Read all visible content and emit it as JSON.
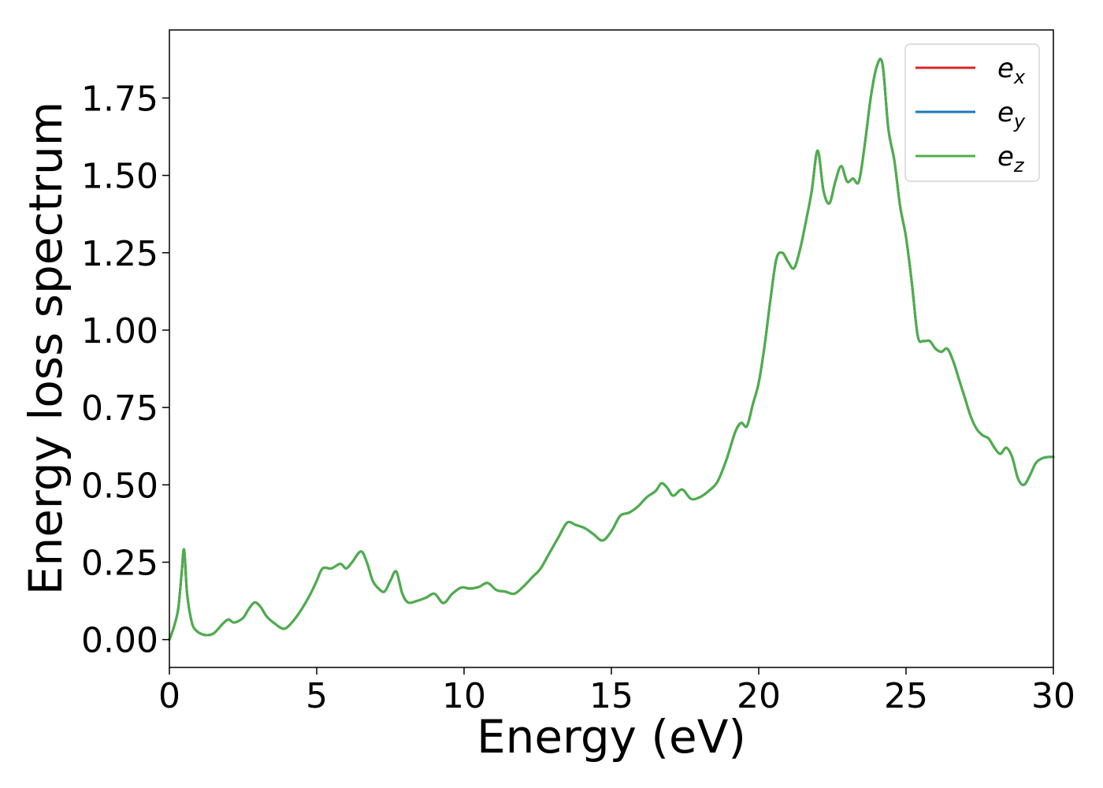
{
  "chart_data": {
    "type": "line",
    "title": "",
    "xlabel": "Energy (eV)",
    "ylabel": "Energy loss spectrum",
    "xlim": [
      0,
      30
    ],
    "ylim": [
      -0.09,
      1.97
    ],
    "xticks": [
      0,
      5,
      10,
      15,
      20,
      25,
      30
    ],
    "xtick_labels": [
      "0",
      "5",
      "10",
      "15",
      "20",
      "25",
      "30"
    ],
    "yticks": [
      0.0,
      0.25,
      0.5,
      0.75,
      1.0,
      1.25,
      1.5,
      1.75
    ],
    "ytick_labels": [
      "0.00",
      "0.25",
      "0.50",
      "0.75",
      "1.00",
      "1.25",
      "1.50",
      "1.75"
    ],
    "grid": false,
    "legend": {
      "position": "top-right",
      "entries": [
        {
          "base": "e",
          "sub": "x",
          "color": "#d62728"
        },
        {
          "base": "e",
          "sub": "y",
          "color": "#1f77b4"
        },
        {
          "base": "e",
          "sub": "z",
          "color": "#4daf4a"
        }
      ]
    },
    "series": [
      {
        "color": "#d62728",
        "x": [
          0.0,
          0.15,
          0.3,
          0.42,
          0.5,
          0.6,
          0.75,
          0.9,
          1.2,
          1.5,
          1.8,
          2.0,
          2.2,
          2.5,
          2.7,
          2.9,
          3.1,
          3.3,
          3.6,
          3.9,
          4.2,
          4.5,
          4.8,
          5.0,
          5.2,
          5.5,
          5.8,
          6.0,
          6.2,
          6.5,
          6.7,
          6.9,
          7.1,
          7.3,
          7.5,
          7.7,
          7.9,
          8.1,
          8.4,
          8.7,
          9.0,
          9.3,
          9.6,
          9.9,
          10.2,
          10.5,
          10.8,
          11.1,
          11.4,
          11.7,
          12.0,
          12.3,
          12.6,
          12.9,
          13.2,
          13.5,
          13.8,
          14.1,
          14.4,
          14.7,
          15.0,
          15.3,
          15.6,
          15.9,
          16.2,
          16.5,
          16.7,
          16.9,
          17.1,
          17.4,
          17.7,
          18.0,
          18.3,
          18.6,
          18.9,
          19.2,
          19.4,
          19.6,
          19.8,
          20.0,
          20.2,
          20.4,
          20.6,
          20.8,
          21.0,
          21.2,
          21.4,
          21.6,
          21.8,
          22.0,
          22.2,
          22.4,
          22.6,
          22.8,
          23.0,
          23.2,
          23.4,
          23.6,
          23.8,
          24.0,
          24.2,
          24.4,
          24.6,
          24.8,
          25.0,
          25.2,
          25.4,
          25.6,
          25.8,
          26.0,
          26.2,
          26.4,
          26.6,
          26.8,
          27.0,
          27.2,
          27.4,
          27.6,
          27.8,
          28.0,
          28.2,
          28.4,
          28.6,
          28.8,
          29.0,
          29.2,
          29.4,
          29.6,
          29.8,
          30.0
        ],
        "y": [
          0.0,
          0.04,
          0.1,
          0.22,
          0.29,
          0.15,
          0.06,
          0.03,
          0.015,
          0.02,
          0.05,
          0.065,
          0.055,
          0.07,
          0.1,
          0.12,
          0.105,
          0.075,
          0.05,
          0.035,
          0.06,
          0.1,
          0.15,
          0.19,
          0.23,
          0.23,
          0.245,
          0.23,
          0.25,
          0.285,
          0.25,
          0.19,
          0.165,
          0.155,
          0.19,
          0.22,
          0.15,
          0.12,
          0.125,
          0.135,
          0.148,
          0.118,
          0.148,
          0.168,
          0.165,
          0.17,
          0.183,
          0.16,
          0.155,
          0.148,
          0.17,
          0.2,
          0.23,
          0.28,
          0.33,
          0.378,
          0.37,
          0.36,
          0.34,
          0.32,
          0.35,
          0.4,
          0.41,
          0.43,
          0.46,
          0.48,
          0.505,
          0.49,
          0.465,
          0.485,
          0.455,
          0.46,
          0.48,
          0.51,
          0.58,
          0.67,
          0.7,
          0.69,
          0.76,
          0.83,
          0.95,
          1.1,
          1.23,
          1.25,
          1.22,
          1.2,
          1.26,
          1.35,
          1.45,
          1.58,
          1.45,
          1.41,
          1.48,
          1.53,
          1.48,
          1.49,
          1.48,
          1.6,
          1.75,
          1.85,
          1.86,
          1.65,
          1.55,
          1.4,
          1.3,
          1.15,
          0.98,
          0.965,
          0.965,
          0.94,
          0.93,
          0.94,
          0.9,
          0.84,
          0.78,
          0.72,
          0.68,
          0.66,
          0.65,
          0.62,
          0.6,
          0.62,
          0.59,
          0.52,
          0.5,
          0.53,
          0.57,
          0.585,
          0.59,
          0.59
        ]
      },
      {
        "color": "#1f77b4",
        "x": [
          0.0,
          0.15,
          0.3,
          0.42,
          0.5,
          0.6,
          0.75,
          0.9,
          1.2,
          1.5,
          1.8,
          2.0,
          2.2,
          2.5,
          2.7,
          2.9,
          3.1,
          3.3,
          3.6,
          3.9,
          4.2,
          4.5,
          4.8,
          5.0,
          5.2,
          5.5,
          5.8,
          6.0,
          6.2,
          6.5,
          6.7,
          6.9,
          7.1,
          7.3,
          7.5,
          7.7,
          7.9,
          8.1,
          8.4,
          8.7,
          9.0,
          9.3,
          9.6,
          9.9,
          10.2,
          10.5,
          10.8,
          11.1,
          11.4,
          11.7,
          12.0,
          12.3,
          12.6,
          12.9,
          13.2,
          13.5,
          13.8,
          14.1,
          14.4,
          14.7,
          15.0,
          15.3,
          15.6,
          15.9,
          16.2,
          16.5,
          16.7,
          16.9,
          17.1,
          17.4,
          17.7,
          18.0,
          18.3,
          18.6,
          18.9,
          19.2,
          19.4,
          19.6,
          19.8,
          20.0,
          20.2,
          20.4,
          20.6,
          20.8,
          21.0,
          21.2,
          21.4,
          21.6,
          21.8,
          22.0,
          22.2,
          22.4,
          22.6,
          22.8,
          23.0,
          23.2,
          23.4,
          23.6,
          23.8,
          24.0,
          24.2,
          24.4,
          24.6,
          24.8,
          25.0,
          25.2,
          25.4,
          25.6,
          25.8,
          26.0,
          26.2,
          26.4,
          26.6,
          26.8,
          27.0,
          27.2,
          27.4,
          27.6,
          27.8,
          28.0,
          28.2,
          28.4,
          28.6,
          28.8,
          29.0,
          29.2,
          29.4,
          29.6,
          29.8,
          30.0
        ],
        "y": [
          0.0,
          0.04,
          0.1,
          0.22,
          0.29,
          0.15,
          0.06,
          0.03,
          0.015,
          0.02,
          0.05,
          0.065,
          0.055,
          0.07,
          0.1,
          0.12,
          0.105,
          0.075,
          0.05,
          0.035,
          0.06,
          0.1,
          0.15,
          0.19,
          0.23,
          0.23,
          0.245,
          0.23,
          0.25,
          0.285,
          0.25,
          0.19,
          0.165,
          0.155,
          0.19,
          0.22,
          0.15,
          0.12,
          0.125,
          0.135,
          0.148,
          0.118,
          0.148,
          0.168,
          0.165,
          0.17,
          0.183,
          0.16,
          0.155,
          0.148,
          0.17,
          0.2,
          0.23,
          0.28,
          0.33,
          0.378,
          0.37,
          0.36,
          0.34,
          0.32,
          0.35,
          0.4,
          0.41,
          0.43,
          0.46,
          0.48,
          0.505,
          0.49,
          0.465,
          0.485,
          0.455,
          0.46,
          0.48,
          0.51,
          0.58,
          0.67,
          0.7,
          0.69,
          0.76,
          0.83,
          0.95,
          1.1,
          1.23,
          1.25,
          1.22,
          1.2,
          1.26,
          1.35,
          1.45,
          1.58,
          1.45,
          1.41,
          1.48,
          1.53,
          1.48,
          1.49,
          1.48,
          1.6,
          1.75,
          1.85,
          1.86,
          1.65,
          1.55,
          1.4,
          1.3,
          1.15,
          0.98,
          0.965,
          0.965,
          0.94,
          0.93,
          0.94,
          0.9,
          0.84,
          0.78,
          0.72,
          0.68,
          0.66,
          0.65,
          0.62,
          0.6,
          0.62,
          0.59,
          0.52,
          0.5,
          0.53,
          0.57,
          0.585,
          0.59,
          0.59
        ]
      },
      {
        "color": "#4daf4a",
        "x": [
          0.0,
          0.15,
          0.3,
          0.42,
          0.5,
          0.6,
          0.75,
          0.9,
          1.2,
          1.5,
          1.8,
          2.0,
          2.2,
          2.5,
          2.7,
          2.9,
          3.1,
          3.3,
          3.6,
          3.9,
          4.2,
          4.5,
          4.8,
          5.0,
          5.2,
          5.5,
          5.8,
          6.0,
          6.2,
          6.5,
          6.7,
          6.9,
          7.1,
          7.3,
          7.5,
          7.7,
          7.9,
          8.1,
          8.4,
          8.7,
          9.0,
          9.3,
          9.6,
          9.9,
          10.2,
          10.5,
          10.8,
          11.1,
          11.4,
          11.7,
          12.0,
          12.3,
          12.6,
          12.9,
          13.2,
          13.5,
          13.8,
          14.1,
          14.4,
          14.7,
          15.0,
          15.3,
          15.6,
          15.9,
          16.2,
          16.5,
          16.7,
          16.9,
          17.1,
          17.4,
          17.7,
          18.0,
          18.3,
          18.6,
          18.9,
          19.2,
          19.4,
          19.6,
          19.8,
          20.0,
          20.2,
          20.4,
          20.6,
          20.8,
          21.0,
          21.2,
          21.4,
          21.6,
          21.8,
          22.0,
          22.2,
          22.4,
          22.6,
          22.8,
          23.0,
          23.2,
          23.4,
          23.6,
          23.8,
          24.0,
          24.2,
          24.4,
          24.6,
          24.8,
          25.0,
          25.2,
          25.4,
          25.6,
          25.8,
          26.0,
          26.2,
          26.4,
          26.6,
          26.8,
          27.0,
          27.2,
          27.4,
          27.6,
          27.8,
          28.0,
          28.2,
          28.4,
          28.6,
          28.8,
          29.0,
          29.2,
          29.4,
          29.6,
          29.8,
          30.0
        ],
        "y": [
          0.0,
          0.04,
          0.1,
          0.22,
          0.29,
          0.15,
          0.06,
          0.03,
          0.015,
          0.02,
          0.05,
          0.065,
          0.055,
          0.07,
          0.1,
          0.12,
          0.105,
          0.075,
          0.05,
          0.035,
          0.06,
          0.1,
          0.15,
          0.19,
          0.23,
          0.23,
          0.245,
          0.23,
          0.25,
          0.285,
          0.25,
          0.19,
          0.165,
          0.155,
          0.19,
          0.22,
          0.15,
          0.12,
          0.125,
          0.135,
          0.148,
          0.118,
          0.148,
          0.168,
          0.165,
          0.17,
          0.183,
          0.16,
          0.155,
          0.148,
          0.17,
          0.2,
          0.23,
          0.28,
          0.33,
          0.378,
          0.37,
          0.36,
          0.34,
          0.32,
          0.35,
          0.4,
          0.41,
          0.43,
          0.46,
          0.48,
          0.505,
          0.49,
          0.465,
          0.485,
          0.455,
          0.46,
          0.48,
          0.51,
          0.58,
          0.67,
          0.7,
          0.69,
          0.76,
          0.83,
          0.95,
          1.1,
          1.23,
          1.25,
          1.22,
          1.2,
          1.26,
          1.35,
          1.45,
          1.58,
          1.45,
          1.41,
          1.48,
          1.53,
          1.48,
          1.49,
          1.48,
          1.6,
          1.75,
          1.85,
          1.86,
          1.65,
          1.55,
          1.4,
          1.3,
          1.15,
          0.98,
          0.965,
          0.965,
          0.94,
          0.93,
          0.94,
          0.9,
          0.84,
          0.78,
          0.72,
          0.68,
          0.66,
          0.65,
          0.62,
          0.6,
          0.62,
          0.59,
          0.52,
          0.5,
          0.53,
          0.57,
          0.585,
          0.59,
          0.59
        ]
      }
    ]
  }
}
